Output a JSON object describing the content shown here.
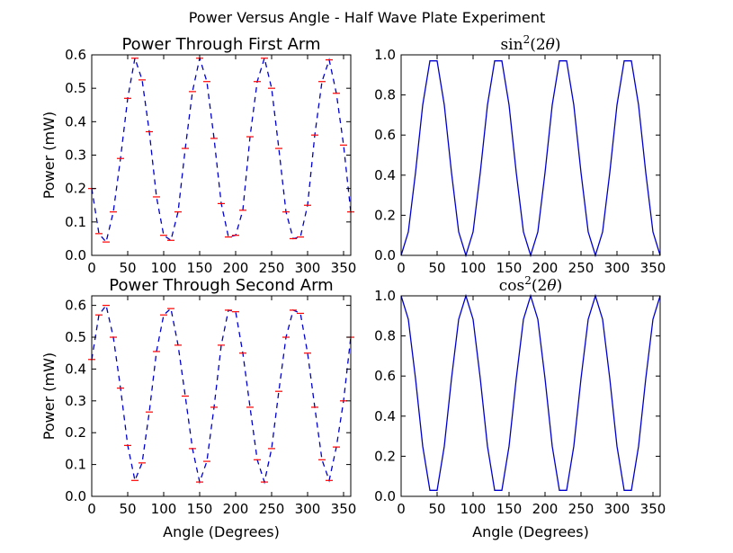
{
  "figure": {
    "suptitle": "Power Versus Angle - Half Wave Plate Experiment"
  },
  "colors": {
    "line": "#0000cc",
    "errorbar": "#ff0000",
    "axes": "#000000"
  },
  "chart_data": [
    {
      "id": "first-arm",
      "type": "line",
      "title": "Power Through First Arm",
      "title_style": "text",
      "xlabel": "",
      "ylabel": "Power (mW)",
      "xlim": [
        0,
        360
      ],
      "ylim": [
        0,
        0.6
      ],
      "xticks": [
        0,
        50,
        100,
        150,
        200,
        250,
        300,
        350
      ],
      "yticks": [
        0.0,
        0.1,
        0.2,
        0.3,
        0.4,
        0.5,
        0.6
      ],
      "ytick_labels": [
        "0.0",
        "0.1",
        "0.2",
        "0.3",
        "0.4",
        "0.5",
        "0.6"
      ],
      "line_style": "dashed",
      "errorbars": true,
      "grid": false,
      "series": [
        {
          "x": [
            0,
            10,
            20,
            30,
            40,
            50,
            60,
            70,
            80,
            90,
            100,
            110,
            120,
            130,
            140,
            150,
            160,
            170,
            180,
            190,
            200,
            210,
            220,
            230,
            240,
            250,
            260,
            270,
            280,
            290,
            300,
            310,
            320,
            330,
            340,
            350,
            360
          ],
          "y": [
            0.2,
            0.065,
            0.04,
            0.13,
            0.29,
            0.47,
            0.59,
            0.525,
            0.37,
            0.175,
            0.06,
            0.045,
            0.13,
            0.32,
            0.49,
            0.59,
            0.52,
            0.35,
            0.155,
            0.055,
            0.06,
            0.135,
            0.355,
            0.52,
            0.59,
            0.5,
            0.32,
            0.13,
            0.05,
            0.055,
            0.15,
            0.36,
            0.52,
            0.585,
            0.485,
            0.33,
            0.13
          ]
        }
      ]
    },
    {
      "id": "sin2",
      "type": "line",
      "title": "sin²(2θ)",
      "title_style": "math",
      "xlabel": "",
      "ylabel": "",
      "xlim": [
        0,
        360
      ],
      "ylim": [
        0,
        1.0
      ],
      "xticks": [
        0,
        50,
        100,
        150,
        200,
        250,
        300,
        350
      ],
      "yticks": [
        0.0,
        0.2,
        0.4,
        0.6,
        0.8,
        1.0
      ],
      "ytick_labels": [
        "0.0",
        "0.2",
        "0.4",
        "0.6",
        "0.8",
        "1.0"
      ],
      "line_style": "solid",
      "errorbars": false,
      "grid": false,
      "series": [
        {
          "x": [
            0,
            10,
            20,
            30,
            40,
            50,
            60,
            70,
            80,
            90,
            100,
            110,
            120,
            130,
            140,
            150,
            160,
            170,
            180,
            190,
            200,
            210,
            220,
            230,
            240,
            250,
            260,
            270,
            280,
            290,
            300,
            310,
            320,
            330,
            340,
            350,
            360
          ],
          "y": [
            0,
            0.117,
            0.413,
            0.75,
            0.97,
            0.97,
            0.75,
            0.413,
            0.117,
            0,
            0.117,
            0.413,
            0.75,
            0.97,
            0.97,
            0.75,
            0.413,
            0.117,
            0,
            0.117,
            0.413,
            0.75,
            0.97,
            0.97,
            0.75,
            0.413,
            0.117,
            0,
            0.117,
            0.413,
            0.75,
            0.97,
            0.97,
            0.75,
            0.413,
            0.117,
            0
          ]
        }
      ]
    },
    {
      "id": "second-arm",
      "type": "line",
      "title": "Power Through Second Arm",
      "title_style": "text",
      "xlabel": "Angle (Degrees)",
      "ylabel": "Power (mW)",
      "xlim": [
        0,
        360
      ],
      "ylim": [
        0,
        0.63
      ],
      "xticks": [
        0,
        50,
        100,
        150,
        200,
        250,
        300,
        350
      ],
      "yticks": [
        0.0,
        0.1,
        0.2,
        0.3,
        0.4,
        0.5,
        0.6
      ],
      "ytick_labels": [
        "0.0",
        "0.1",
        "0.2",
        "0.3",
        "0.4",
        "0.5",
        "0.6"
      ],
      "line_style": "dashed",
      "errorbars": true,
      "grid": false,
      "series": [
        {
          "x": [
            0,
            10,
            20,
            30,
            40,
            50,
            60,
            70,
            80,
            90,
            100,
            110,
            120,
            130,
            140,
            150,
            160,
            170,
            180,
            190,
            200,
            210,
            220,
            230,
            240,
            250,
            260,
            270,
            280,
            290,
            300,
            310,
            320,
            330,
            340,
            350,
            360
          ],
          "y": [
            0.43,
            0.57,
            0.6,
            0.5,
            0.34,
            0.16,
            0.05,
            0.105,
            0.265,
            0.455,
            0.57,
            0.59,
            0.475,
            0.315,
            0.15,
            0.045,
            0.11,
            0.28,
            0.475,
            0.585,
            0.58,
            0.45,
            0.28,
            0.115,
            0.045,
            0.15,
            0.33,
            0.5,
            0.585,
            0.575,
            0.45,
            0.28,
            0.115,
            0.05,
            0.155,
            0.3,
            0.5
          ]
        }
      ]
    },
    {
      "id": "cos2",
      "type": "line",
      "title": "cos²(2θ)",
      "title_style": "math",
      "xlabel": "Angle (Degrees)",
      "ylabel": "",
      "xlim": [
        0,
        360
      ],
      "ylim": [
        0,
        1.0
      ],
      "xticks": [
        0,
        50,
        100,
        150,
        200,
        250,
        300,
        350
      ],
      "yticks": [
        0.0,
        0.2,
        0.4,
        0.6,
        0.8,
        1.0
      ],
      "ytick_labels": [
        "0.0",
        "0.2",
        "0.4",
        "0.6",
        "0.8",
        "1.0"
      ],
      "line_style": "solid",
      "errorbars": false,
      "grid": false,
      "series": [
        {
          "x": [
            0,
            10,
            20,
            30,
            40,
            50,
            60,
            70,
            80,
            90,
            100,
            110,
            120,
            130,
            140,
            150,
            160,
            170,
            180,
            190,
            200,
            210,
            220,
            230,
            240,
            250,
            260,
            270,
            280,
            290,
            300,
            310,
            320,
            330,
            340,
            350,
            360
          ],
          "y": [
            1,
            0.883,
            0.587,
            0.25,
            0.03,
            0.03,
            0.25,
            0.587,
            0.883,
            1,
            0.883,
            0.587,
            0.25,
            0.03,
            0.03,
            0.25,
            0.587,
            0.883,
            1,
            0.883,
            0.587,
            0.25,
            0.03,
            0.03,
            0.25,
            0.587,
            0.883,
            1,
            0.883,
            0.587,
            0.25,
            0.03,
            0.03,
            0.25,
            0.587,
            0.883,
            1
          ]
        }
      ]
    }
  ]
}
